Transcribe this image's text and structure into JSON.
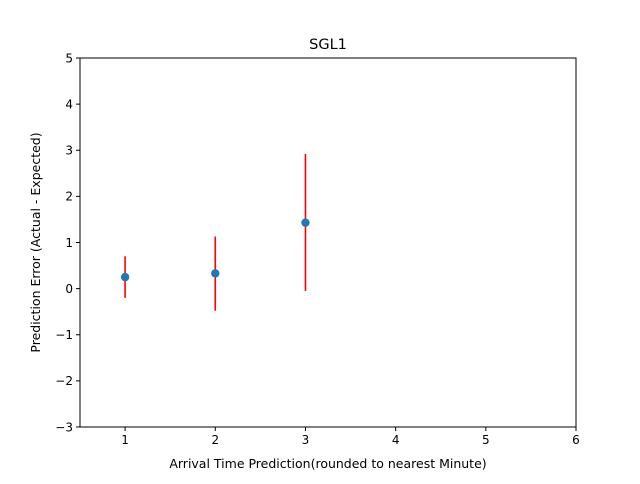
{
  "chart_data": {
    "type": "scatter",
    "title": "SGL1",
    "xlabel": "Arrival Time Prediction(rounded to nearest Minute)",
    "ylabel": "Prediction Error (Actual - Expected)",
    "xlim": [
      0.5,
      6.0
    ],
    "ylim": [
      -3,
      5
    ],
    "xticks": [
      "1",
      "2",
      "3",
      "4",
      "5",
      "6"
    ],
    "yticks": [
      "−3",
      "−2",
      "−1",
      "0",
      "1",
      "2",
      "3",
      "4",
      "5"
    ],
    "grid": false,
    "legend": "none",
    "series": [
      {
        "x": [
          1,
          2,
          3
        ],
        "y": [
          0.25,
          0.33,
          1.43
        ],
        "error_low": [
          -0.2,
          -0.48,
          -0.05
        ],
        "error_high": [
          0.7,
          1.13,
          2.92
        ],
        "marker_color": "#1f77b4",
        "errorbar_color": "#ff0000"
      }
    ]
  }
}
